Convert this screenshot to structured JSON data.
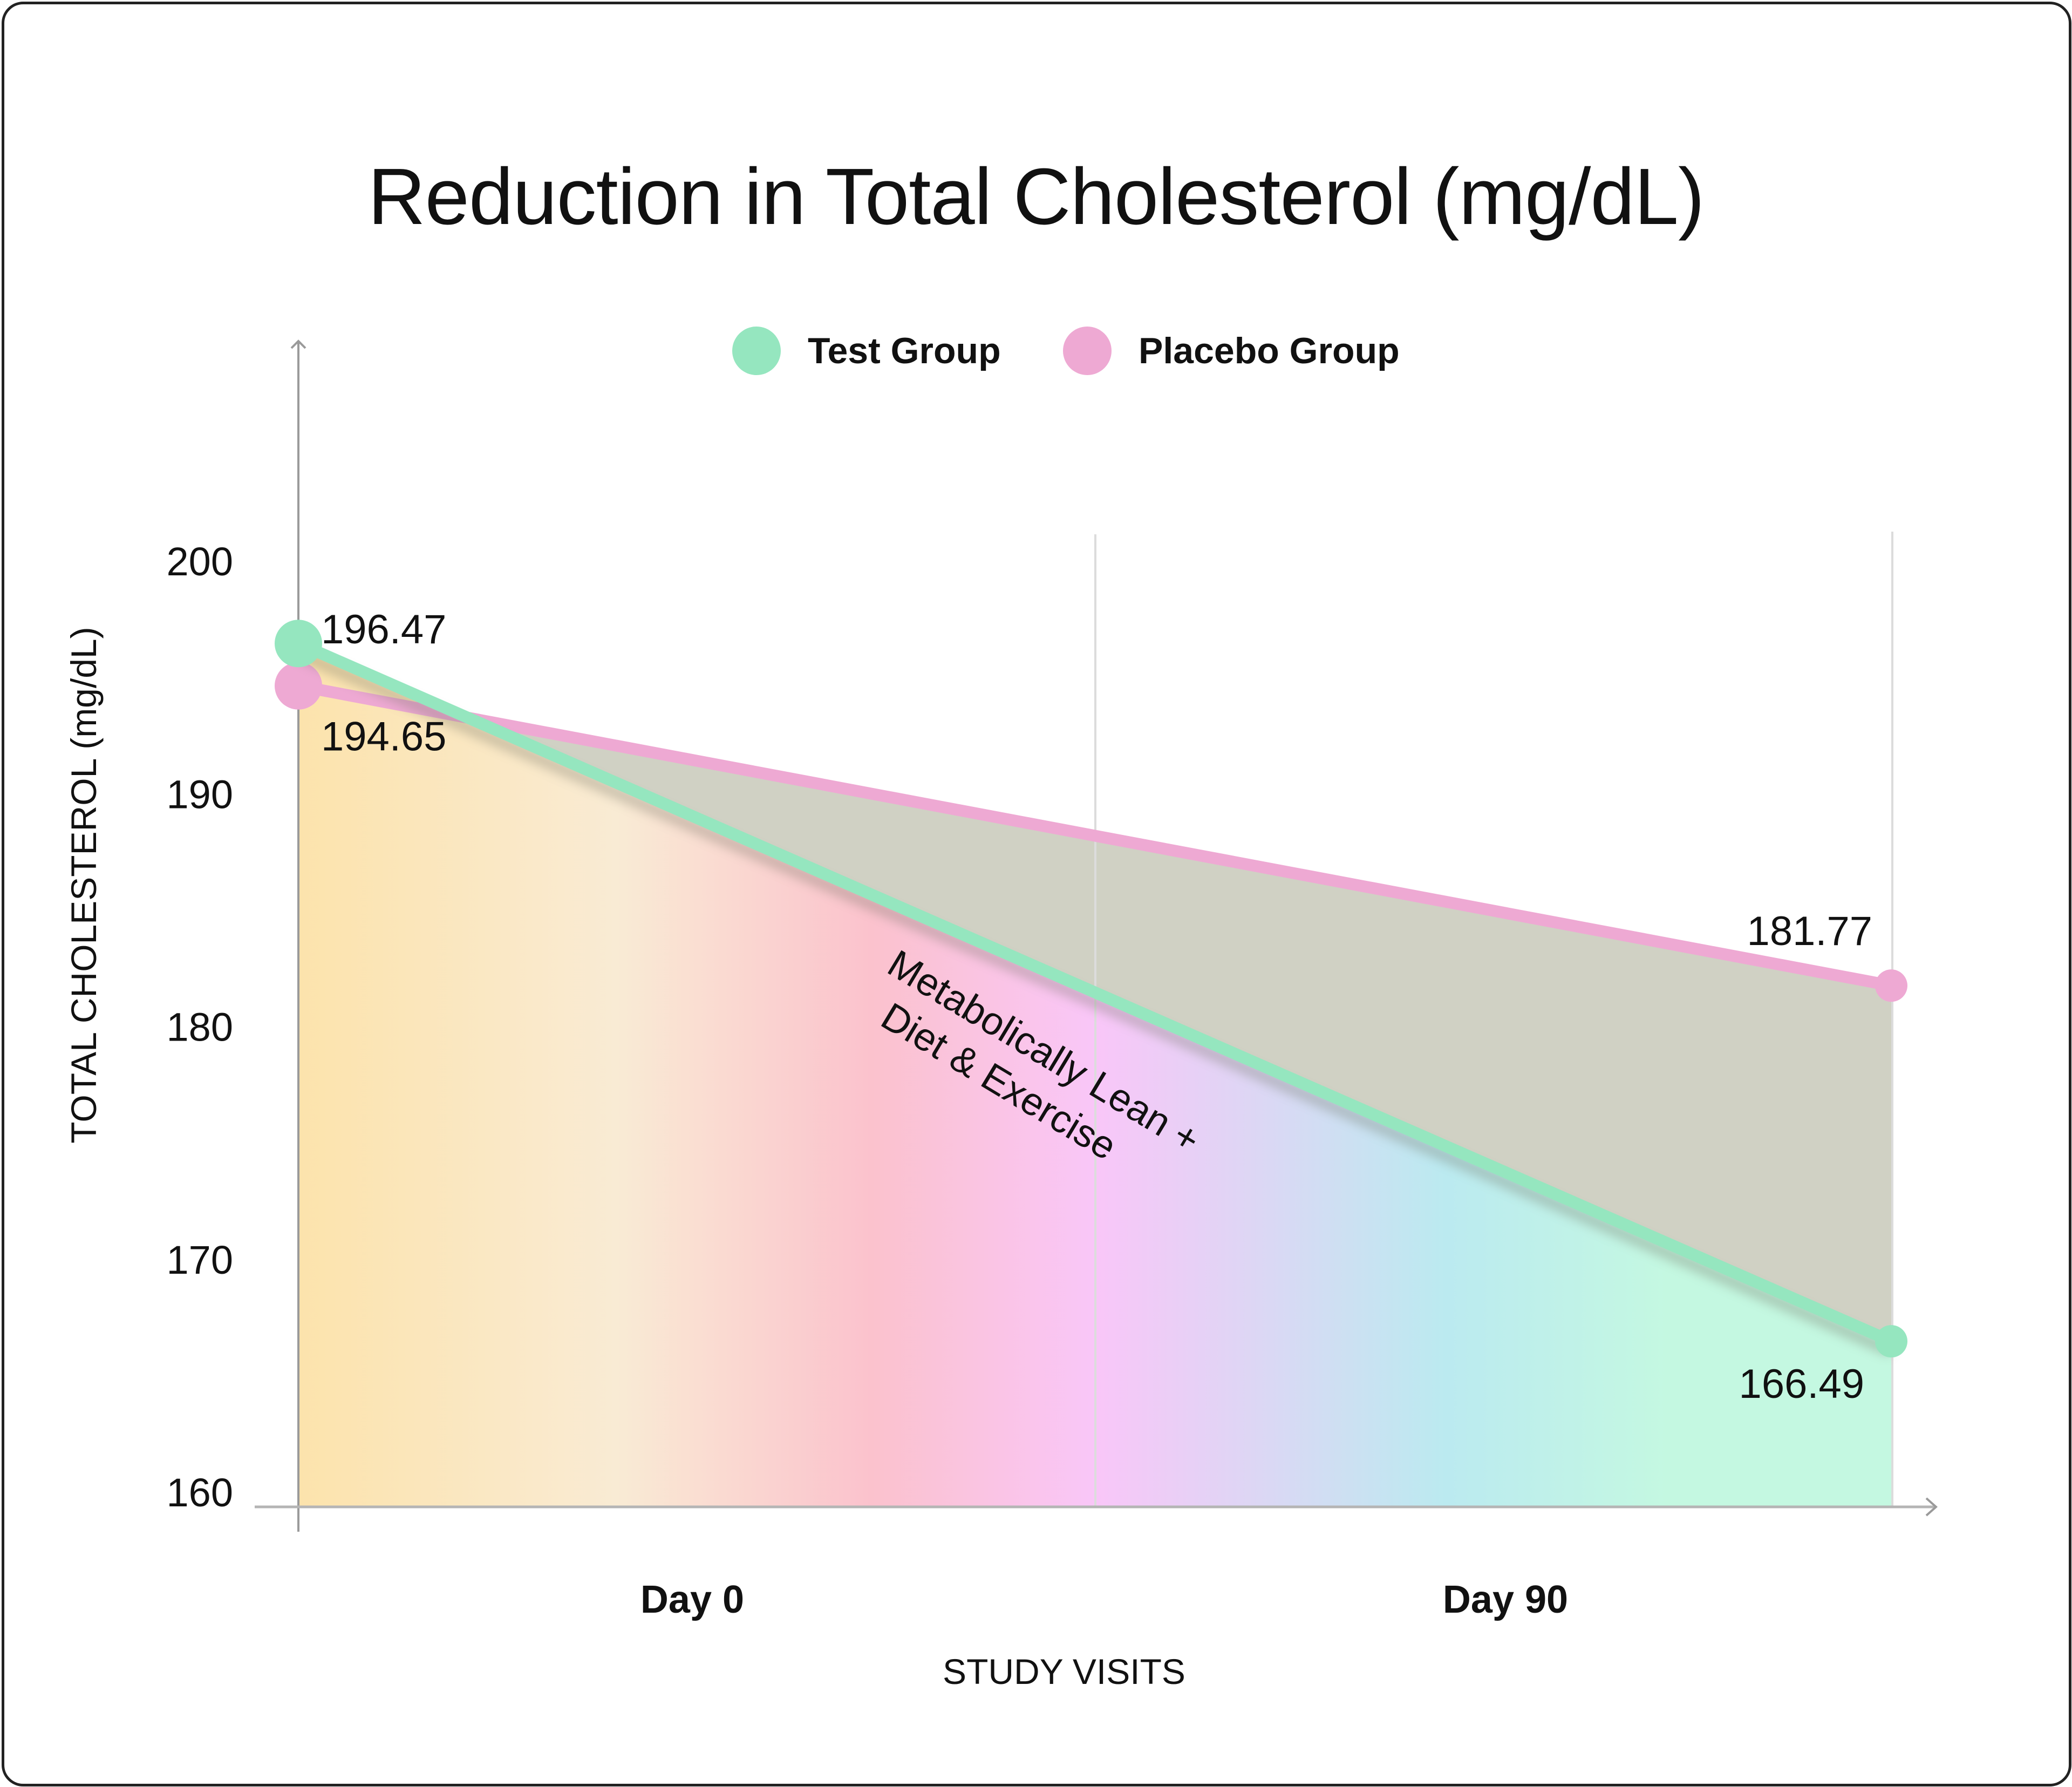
{
  "chart_data": {
    "type": "line",
    "title": "Reduction in Total Cholesterol (mg/dL)",
    "xlabel": "STUDY VISITS",
    "ylabel": "TOTAL CHOLESTEROL (mg/dL)",
    "categories": [
      "Day 0",
      "Day 90"
    ],
    "ylim": [
      160,
      200
    ],
    "yticks": [
      200,
      190,
      180,
      170,
      160
    ],
    "ytick_labels": [
      "200",
      "190",
      "180",
      "170",
      "160"
    ],
    "grid": "vertical",
    "legend_position": "top-center",
    "series": [
      {
        "name": "Test Group",
        "color": "#95e6bf",
        "values": [
          196.47,
          166.49
        ],
        "labels": [
          "196.47",
          "166.49"
        ]
      },
      {
        "name": "Placebo Group",
        "color": "#eea9d3",
        "values": [
          194.65,
          181.77
        ],
        "labels": [
          "194.65",
          "181.77"
        ]
      }
    ],
    "annotation": {
      "lines": [
        "Metabolically Lean +",
        "Diet & Exercise"
      ]
    },
    "fill_colors": {
      "gap_between_series": "#d0d1c4",
      "gradient_under_test": [
        "#fce3ac",
        "#f9ebd4",
        "#fbc2cd",
        "#f9c6f8",
        "#bbeaf0",
        "#c4f8e1"
      ]
    }
  }
}
